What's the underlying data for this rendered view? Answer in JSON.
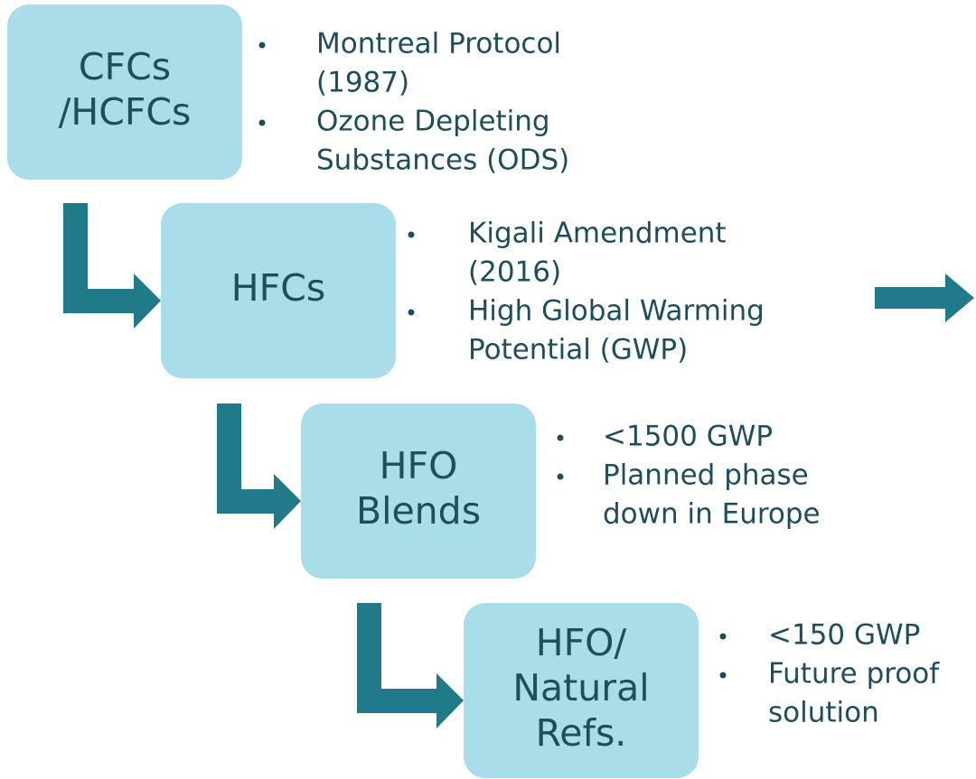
{
  "nodes": [
    {
      "label": [
        "CFCs",
        "/HCFCs"
      ],
      "bullets": [
        [
          "Montreal Protocol",
          "(1987)"
        ],
        [
          "Ozone Depleting",
          "Substances (ODS)"
        ]
      ]
    },
    {
      "label": [
        "HFCs"
      ],
      "bullets": [
        [
          "Kigali Amendment",
          "(2016)"
        ],
        [
          "High Global Warming",
          "Potential (GWP)"
        ]
      ]
    },
    {
      "label": [
        "HFO",
        "Blends"
      ],
      "bullets": [
        [
          "<1500 GWP"
        ],
        [
          "Planned phase",
          "down in Europe"
        ]
      ]
    },
    {
      "label": [
        "HFO/",
        "Natural",
        "Refs."
      ],
      "bullets": [
        [
          "<150 GWP"
        ],
        [
          "Future proof",
          "solution"
        ]
      ]
    }
  ]
}
